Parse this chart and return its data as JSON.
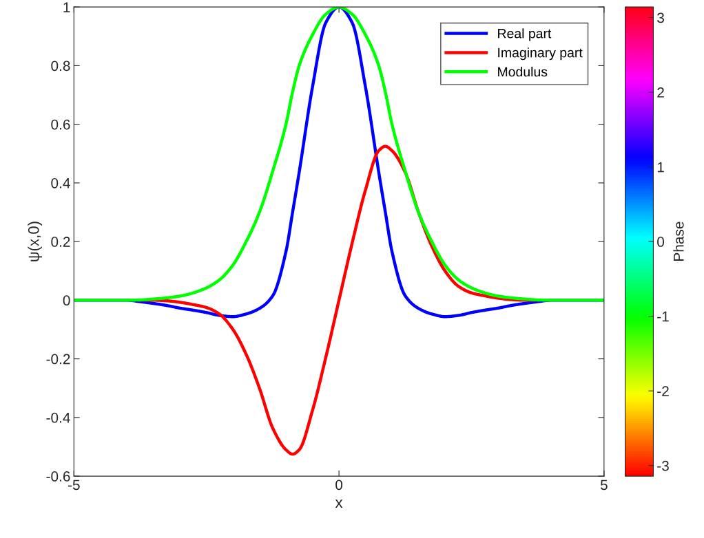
{
  "chart_data": {
    "type": "line",
    "xlabel": "x",
    "ylabel": "ψ(x,0)",
    "clabel": "Phase",
    "x": [
      -5,
      -4.5,
      -4,
      -3.75,
      -3.5,
      -3.25,
      -3,
      -2.75,
      -2.5,
      -2.25,
      -2,
      -1.75,
      -1.5,
      -1.25,
      -1,
      -0.875,
      -0.75,
      -0.5,
      -0.25,
      0,
      0.25,
      0.5,
      0.75,
      0.875,
      1,
      1.25,
      1.5,
      1.75,
      2,
      2.25,
      2.5,
      2.75,
      3,
      3.25,
      3.5,
      3.75,
      4,
      4.5,
      5
    ],
    "series": [
      {
        "name": "Real part",
        "color": "#0000ff",
        "values": [
          0,
          0,
          0,
          -0.005,
          -0.011,
          -0.018,
          -0.027,
          -0.034,
          -0.042,
          -0.052,
          -0.056,
          -0.047,
          -0.028,
          0.015,
          0.166,
          0.3,
          0.437,
          0.727,
          0.946,
          1,
          0.946,
          0.727,
          0.437,
          0.3,
          0.166,
          0.015,
          -0.028,
          -0.047,
          -0.056,
          -0.052,
          -0.042,
          -0.034,
          -0.027,
          -0.018,
          -0.011,
          -0.005,
          0,
          0,
          0
        ]
      },
      {
        "name": "Imaginary part",
        "color": "#ff0000",
        "values": [
          null,
          null,
          null,
          0,
          0,
          -0.002,
          -0.007,
          -0.015,
          -0.025,
          -0.048,
          -0.1,
          -0.185,
          -0.3,
          -0.436,
          -0.51,
          -0.525,
          -0.51,
          -0.376,
          -0.196,
          0,
          0.196,
          0.376,
          0.51,
          0.525,
          0.51,
          0.436,
          0.3,
          0.185,
          0.1,
          0.048,
          0.025,
          0.015,
          0.007,
          0.002,
          0,
          0,
          null,
          null,
          null
        ]
      },
      {
        "name": "Modulus",
        "color": "#00ff00",
        "values": [
          0,
          0,
          0,
          0.001,
          0.004,
          0.008,
          0.014,
          0.025,
          0.042,
          0.07,
          0.12,
          0.2,
          0.3,
          0.44,
          0.6,
          0.71,
          0.8,
          0.905,
          0.975,
          1,
          0.975,
          0.905,
          0.8,
          0.71,
          0.6,
          0.44,
          0.3,
          0.2,
          0.12,
          0.07,
          0.042,
          0.025,
          0.014,
          0.008,
          0.004,
          0.001,
          0,
          0,
          0
        ]
      }
    ],
    "xlim": [
      -5,
      5
    ],
    "xticks": [
      -5,
      0,
      5
    ],
    "ylim": [
      -0.6,
      1
    ],
    "yticks": [
      -0.6,
      -0.4,
      -0.2,
      0,
      0.2,
      0.4,
      0.6,
      0.8,
      1
    ],
    "clim": [
      -3.1416,
      3.1416
    ],
    "cticks": [
      -3,
      -2,
      -1,
      0,
      1,
      2,
      3
    ],
    "legend": "top right",
    "grid": false,
    "marker": "none",
    "line_style": "solid"
  }
}
